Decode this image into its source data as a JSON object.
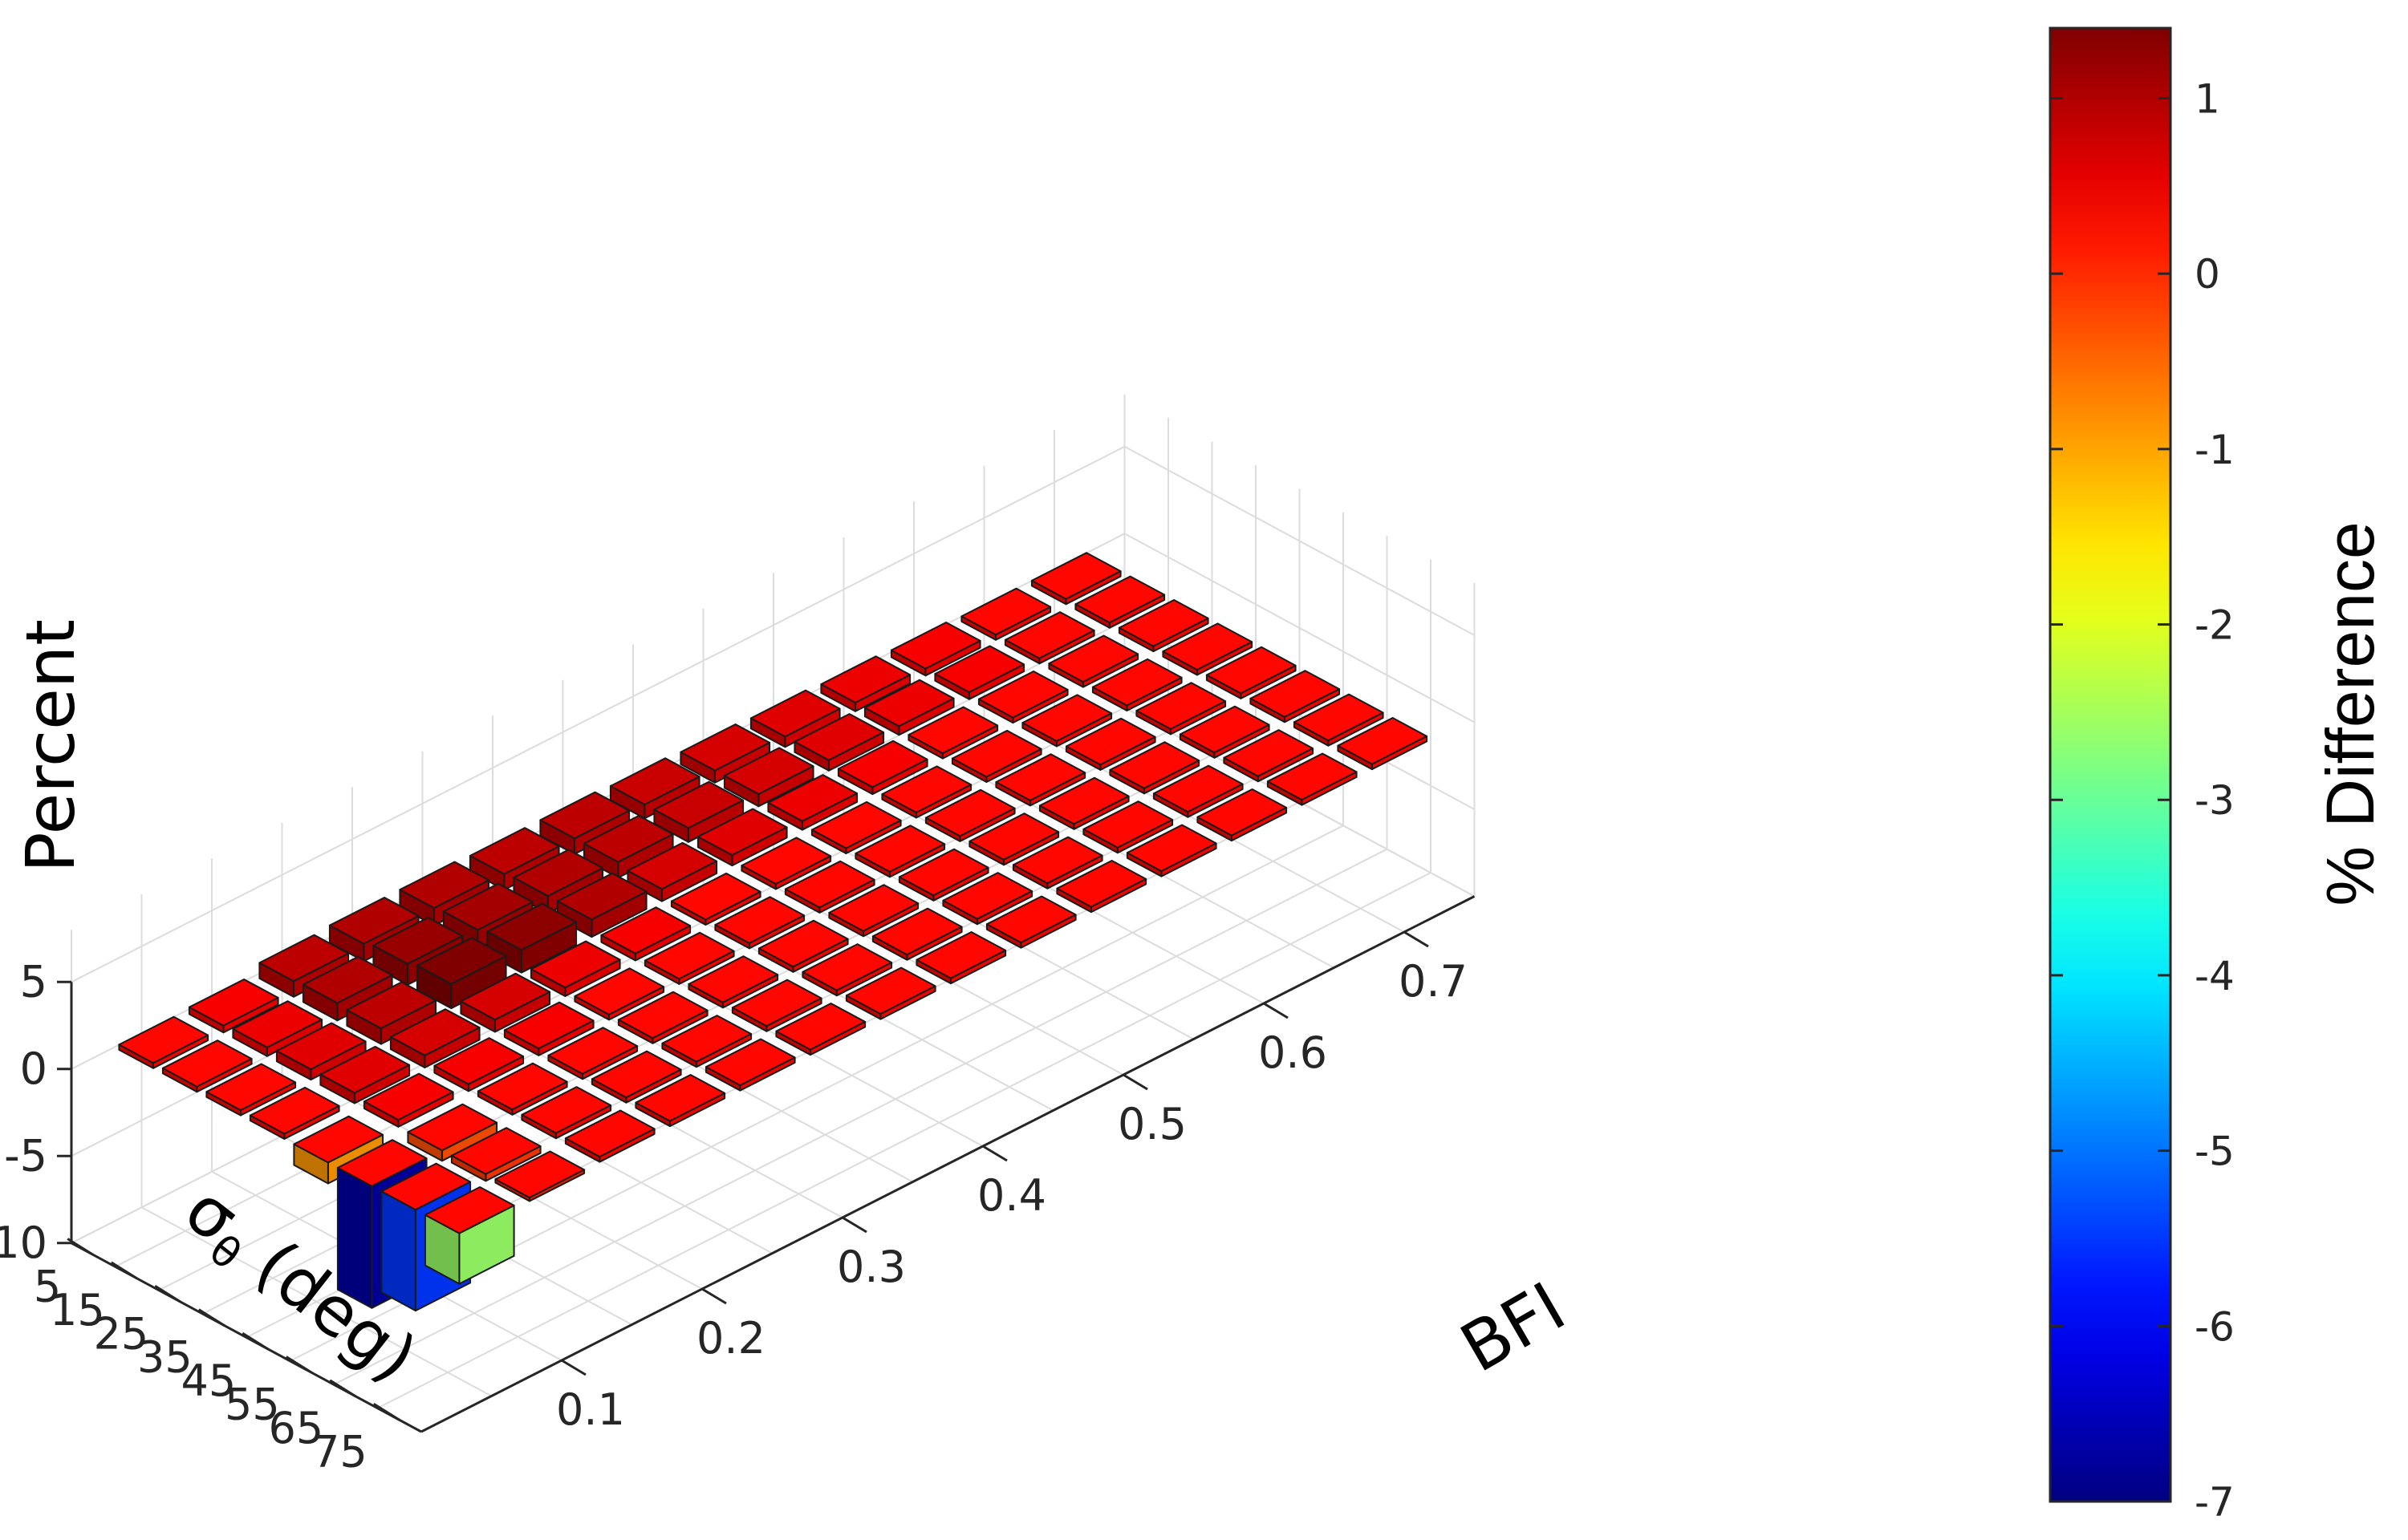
{
  "chart_data": {
    "type": "bar3d",
    "title": "",
    "x_axis": {
      "label": "BFI",
      "ticks": [
        "0.1",
        "0.2",
        "0.3",
        "0.4",
        "0.5",
        "0.6",
        "0.7"
      ]
    },
    "y_axis": {
      "label": "σ",
      "label_subscript": "θ",
      "label_suffix": " (deg)",
      "ticks": [
        "5",
        "15",
        "25",
        "35",
        "45",
        "55",
        "65",
        "75"
      ]
    },
    "z_axis": {
      "label": "Percent",
      "ticks": [
        "5",
        "0",
        "-5",
        "-10"
      ],
      "range": [
        -10,
        5
      ]
    },
    "colorbar": {
      "label": "% Difference",
      "ticks": [
        "1",
        "0",
        "-1",
        "-2",
        "-3",
        "-4",
        "-5",
        "-6",
        "-7"
      ],
      "range": [
        -7,
        1.4
      ],
      "colormap": "jet"
    },
    "grid": true,
    "bfi_values": [
      0.05,
      0.1,
      0.15,
      0.2,
      0.25,
      0.3,
      0.35,
      0.4,
      0.45,
      0.5,
      0.55,
      0.6,
      0.65,
      0.7
    ],
    "sigma_values": [
      5,
      15,
      25,
      35,
      45,
      55,
      65,
      75
    ],
    "values": [
      [
        0.3,
        0.4,
        0.9,
        1.0,
        1.0,
        0.9,
        0.9,
        0.8,
        0.7,
        0.6,
        0.5,
        0.4,
        0.3,
        0.3
      ],
      [
        0.3,
        0.5,
        1.0,
        1.2,
        1.1,
        1.0,
        0.9,
        0.8,
        0.7,
        0.6,
        0.5,
        0.4,
        0.3,
        0.3
      ],
      [
        0.3,
        0.6,
        0.9,
        1.4,
        1.3,
        1.0,
        0.7,
        0.6,
        0.5,
        0.4,
        0.3,
        0.3,
        0.3,
        0.3
      ],
      [
        0.3,
        0.6,
        0.7,
        0.7,
        0.5,
        0.4,
        0.3,
        0.3,
        0.3,
        0.3,
        0.3,
        0.3,
        0.3,
        0.3
      ],
      [
        -1.2,
        0.4,
        0.4,
        0.4,
        0.3,
        0.3,
        0.3,
        0.3,
        0.3,
        0.3,
        0.3,
        0.3,
        0.3,
        0.3
      ],
      [
        -7.0,
        -0.6,
        0.3,
        0.3,
        0.3,
        0.3,
        0.3,
        0.3,
        0.3,
        0.3,
        0.3,
        0.3,
        0.3,
        0.3
      ],
      [
        -5.8,
        -0.4,
        0.3,
        0.3,
        0.3,
        0.3,
        0.3,
        0.3,
        0.3,
        0.3,
        0.3,
        0.3,
        0.3,
        0.3
      ],
      [
        -2.9,
        -0.2,
        0.3,
        0.3,
        0.3,
        0.3,
        0.3,
        0.3,
        0.3,
        0.3,
        0.3,
        0.3,
        0.3,
        0.3
      ]
    ]
  }
}
